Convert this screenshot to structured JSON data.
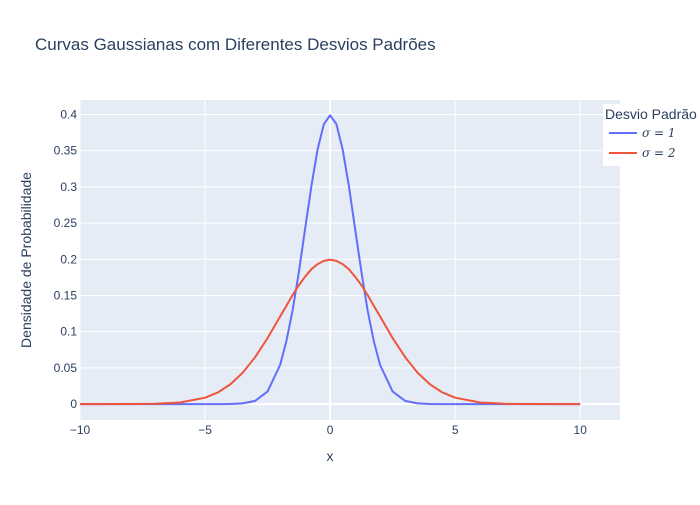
{
  "chart_data": {
    "type": "line",
    "title": "Curvas Gaussianas com Diferentes Desvios Padrões",
    "xlabel": "x",
    "ylabel": "Densidade de Probabilidade",
    "xlim": [
      -10,
      10
    ],
    "ylim": [
      -0.022,
      0.42
    ],
    "x_ticks": [
      -10,
      -5,
      0,
      5,
      10
    ],
    "x_tick_labels": [
      "−10",
      "−5",
      "0",
      "5",
      "10"
    ],
    "y_ticks": [
      0,
      0.05,
      0.1,
      0.15,
      0.2,
      0.25,
      0.3,
      0.35,
      0.4
    ],
    "y_tick_labels": [
      "0",
      "0.05",
      "0.1",
      "0.15",
      "0.2",
      "0.25",
      "0.3",
      "0.35",
      "0.4"
    ],
    "grid": true,
    "legend": {
      "title": "Desvio Padrão",
      "position": "top-right"
    },
    "x": [
      -10,
      -9,
      -8,
      -7,
      -6,
      -5,
      -4.5,
      -4,
      -3.5,
      -3,
      -2.5,
      -2,
      -1.75,
      -1.5,
      -1.25,
      -1,
      -0.75,
      -0.5,
      -0.25,
      0,
      0.25,
      0.5,
      0.75,
      1,
      1.25,
      1.5,
      1.75,
      2,
      2.5,
      3,
      3.5,
      4,
      4.5,
      5,
      6,
      7,
      8,
      9,
      10
    ],
    "series": [
      {
        "name": "σ = 1",
        "color": "#636efa",
        "values": [
          0,
          0,
          0,
          0,
          0,
          1.5e-06,
          1.6e-05,
          0.000134,
          0.000873,
          0.00443,
          0.0175,
          0.054,
          0.0863,
          0.1295,
          0.1826,
          0.242,
          0.3011,
          0.3521,
          0.3867,
          0.3989,
          0.3867,
          0.3521,
          0.3011,
          0.242,
          0.1826,
          0.1295,
          0.0863,
          0.054,
          0.0175,
          0.00443,
          0.000873,
          0.000134,
          1.6e-05,
          1.5e-06,
          0,
          0,
          0,
          0,
          0
        ]
      },
      {
        "name": "σ = 2",
        "color": "#ef553b",
        "values": [
          7e-07,
          8e-06,
          6.69e-05,
          0.000436,
          0.00222,
          0.00876,
          0.0158,
          0.027,
          0.0431,
          0.0648,
          0.0913,
          0.121,
          0.1354,
          0.1506,
          0.1643,
          0.176,
          0.1863,
          0.1933,
          0.1977,
          0.1995,
          0.1977,
          0.1933,
          0.1863,
          0.176,
          0.1643,
          0.1506,
          0.1354,
          0.121,
          0.0913,
          0.0648,
          0.0431,
          0.027,
          0.0158,
          0.00876,
          0.00222,
          0.000436,
          6.69e-05,
          8e-06,
          7e-07
        ]
      }
    ]
  }
}
